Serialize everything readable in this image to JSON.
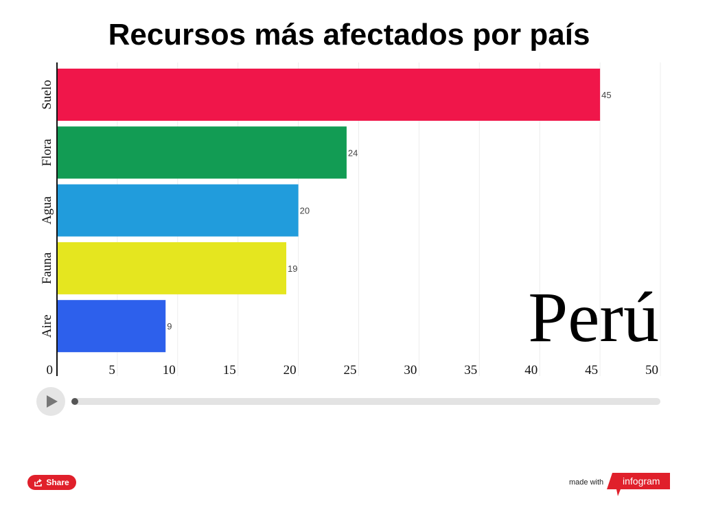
{
  "chart_data": {
    "type": "bar",
    "orientation": "horizontal",
    "title": "Recursos más afectados por país",
    "categories": [
      "Suelo",
      "Flora",
      "Agua",
      "Fauna",
      "Aire"
    ],
    "values": [
      45,
      24,
      20,
      19,
      9
    ],
    "colors": [
      "#f0164a",
      "#129c54",
      "#219cdc",
      "#e5e61f",
      "#2d60ec"
    ],
    "xlim": [
      0,
      50
    ],
    "xticks": [
      0,
      5,
      10,
      15,
      20,
      25,
      30,
      35,
      40,
      45,
      50
    ],
    "grid": true,
    "overlay_label": "Perú"
  },
  "controls": {
    "play_icon": "play-icon",
    "progress": 0
  },
  "footer": {
    "share_label": "Share",
    "made_with": "made with",
    "brand": "infogram",
    "brand_color": "#e0202b"
  }
}
